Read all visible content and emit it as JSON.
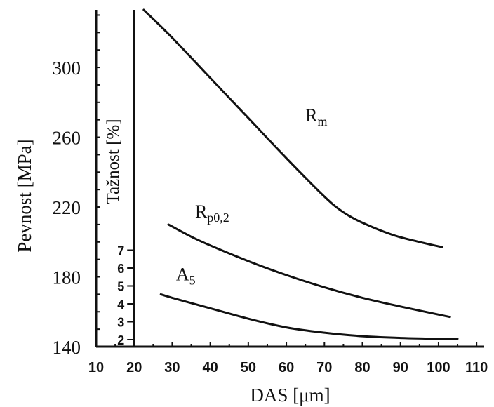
{
  "chart_data": {
    "type": "line",
    "xlabel": "DAS [μm]",
    "ylabel": "Pevnost [MPa]",
    "y2label": "Tažnost [%]",
    "x_ticks": [
      "10",
      "20",
      "30",
      "40",
      "50",
      "60",
      "70",
      "80",
      "90",
      "100",
      "110"
    ],
    "y_ticks": [
      "140",
      "180",
      "220",
      "260",
      "300"
    ],
    "y2_ticks": [
      "2",
      "3",
      "4",
      "5",
      "6",
      "7"
    ],
    "xlim": [
      10,
      112
    ],
    "ylim": [
      140,
      333
    ],
    "y2_axis_x": 20,
    "series": [
      {
        "name": "Rm",
        "label_main": "R",
        "label_sub": "m",
        "label_at": [
          65,
          269
        ],
        "x": [
          22.5,
          30,
          40,
          50,
          60,
          70,
          75,
          80,
          88,
          95,
          101
        ],
        "y": [
          333,
          317,
          294,
          271,
          248,
          226,
          217,
          211,
          204,
          200,
          197
        ]
      },
      {
        "name": "Rp0,2",
        "label_main": "R",
        "label_sub": "p0,2",
        "label_at": [
          36,
          214
        ],
        "x": [
          29,
          35,
          40,
          50,
          60,
          70,
          80,
          90,
          103
        ],
        "y": [
          210,
          203,
          198,
          189,
          181,
          174,
          168,
          163,
          157
        ]
      },
      {
        "name": "A5",
        "label_main": "A",
        "label_sub": "5",
        "label_at": [
          31,
          178
        ],
        "x": [
          27,
          30,
          40,
          50,
          60,
          70,
          80,
          90,
          100,
          105
        ],
        "y": [
          170,
          168,
          162,
          156,
          151,
          148,
          146,
          145,
          144.5,
          144.5
        ]
      }
    ]
  }
}
